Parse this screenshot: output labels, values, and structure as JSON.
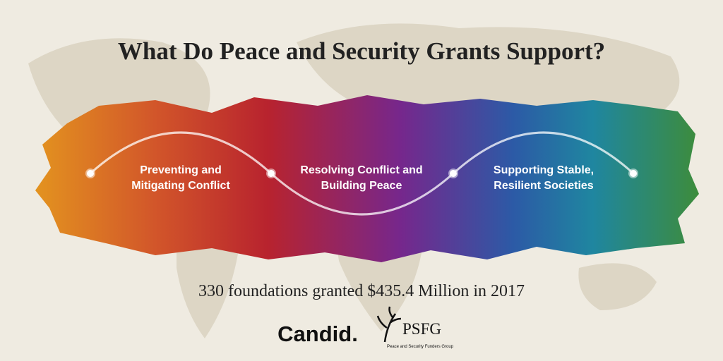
{
  "title": "What Do Peace and Security Grants Support?",
  "stages": [
    {
      "lines": [
        "Preventing and",
        "Mitigating Conflict"
      ]
    },
    {
      "lines": [
        "Resolving Conflict and",
        "Building Peace"
      ]
    },
    {
      "lines": [
        "Supporting Stable,",
        "Resilient Societies"
      ]
    }
  ],
  "summary": "330 foundations granted $435.4 Million in 2017",
  "logos": {
    "candid": "Candid.",
    "psfg": {
      "name": "PSFG",
      "tagline": "Peace and Security Funders Group"
    }
  }
}
